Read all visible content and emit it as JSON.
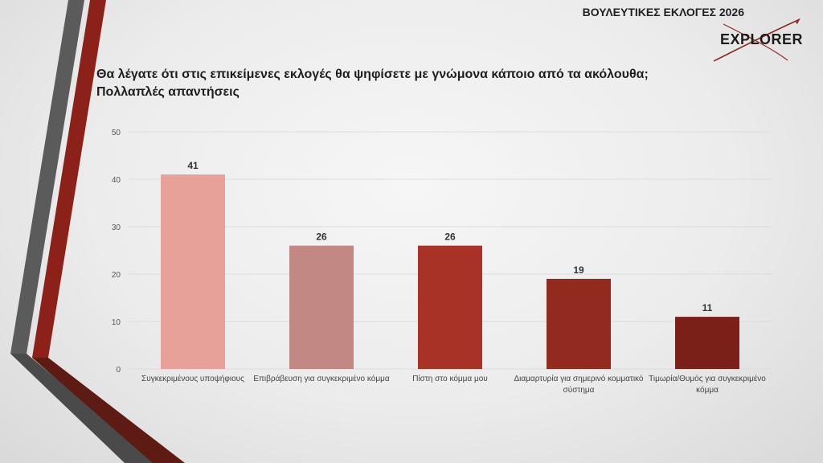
{
  "header": {
    "title": "ΒΟΥΛΕΥΤΙΚΕΣ ΕΚΛΟΓΕΣ 2026"
  },
  "logo": {
    "text": "EXPLORER"
  },
  "question": {
    "line1": "Θα λέγατε ότι στις επικείμενες εκλογές θα ψηφίσετε με γνώμονα κάποιο από τα ακόλουθα;",
    "line2": "Πολλαπλές απαντήσεις"
  },
  "chart_data": {
    "type": "bar",
    "categories": [
      "Συγκεκριμένους υποψήφιους",
      "Επιβράβευση για συγκεκριμένο κόμμα",
      "Πίστη στο κόμμα μου",
      "Διαμαρτυρία για σημερινό κομματικό σύστημα",
      "Τιμωρία/Θυμός για συγκεκριμένο κόμμα"
    ],
    "values": [
      41,
      26,
      26,
      19,
      11
    ],
    "value_labels": [
      "41",
      "26",
      "26",
      "19",
      "11"
    ],
    "colors": [
      "#e8a198",
      "#c28884",
      "#a93226",
      "#922a20",
      "#7b2018"
    ],
    "ylim": [
      0,
      50
    ],
    "yticks": [
      "0",
      "10",
      "20",
      "30",
      "40",
      "50"
    ],
    "grid": true,
    "legend": "none"
  }
}
